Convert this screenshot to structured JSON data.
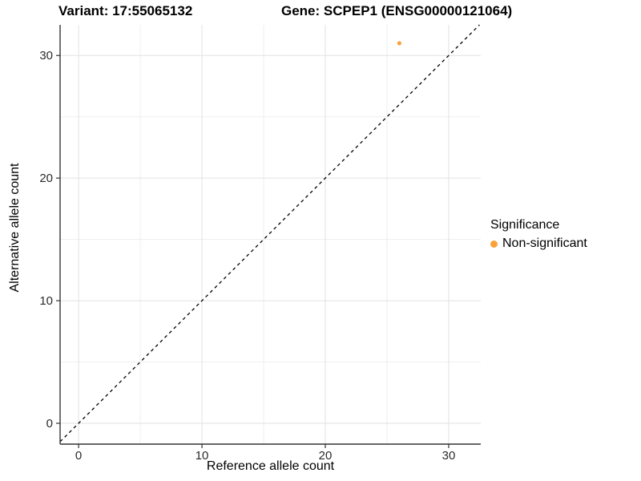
{
  "titles": {
    "variant": "Variant: 17:55065132",
    "gene": "Gene: SCPEP1 (ENSG00000121064)"
  },
  "axes": {
    "x_label": "Reference allele count",
    "y_label": "Alternative allele count"
  },
  "legend": {
    "title": "Significance",
    "items": [
      {
        "label": "Non-significant",
        "color": "#F9A23C"
      }
    ]
  },
  "colors": {
    "accent_orange": "#F9A23C",
    "grid_major": "#E2E2E2",
    "grid_minor": "#EDEDED",
    "axis_line": "#333333",
    "tick_text": "#2B2B2B",
    "reference_line": "#000000",
    "background": "#FFFFFF"
  },
  "chart_data": {
    "type": "scatter",
    "title": "Variant: 17:55065132   Gene: SCPEP1 (ENSG00000121064)",
    "xlabel": "Reference allele count",
    "ylabel": "Alternative allele count",
    "xlim": [
      -1.5,
      32.6
    ],
    "ylim": [
      -1.7,
      32.5
    ],
    "x_ticks": [
      0,
      10,
      20,
      30
    ],
    "y_ticks": [
      0,
      10,
      20,
      30
    ],
    "grid_major": [
      0,
      10,
      20,
      30
    ],
    "grid_minor": [
      5,
      15,
      25
    ],
    "grid": "on",
    "legend_position": "right",
    "series": [
      {
        "name": "Non-significant",
        "color": "#F9A23C",
        "points": [
          {
            "x": 26,
            "y": 31
          }
        ]
      }
    ],
    "reference_line": {
      "kind": "identity y=x",
      "style": "dashed",
      "color": "#000000"
    }
  }
}
